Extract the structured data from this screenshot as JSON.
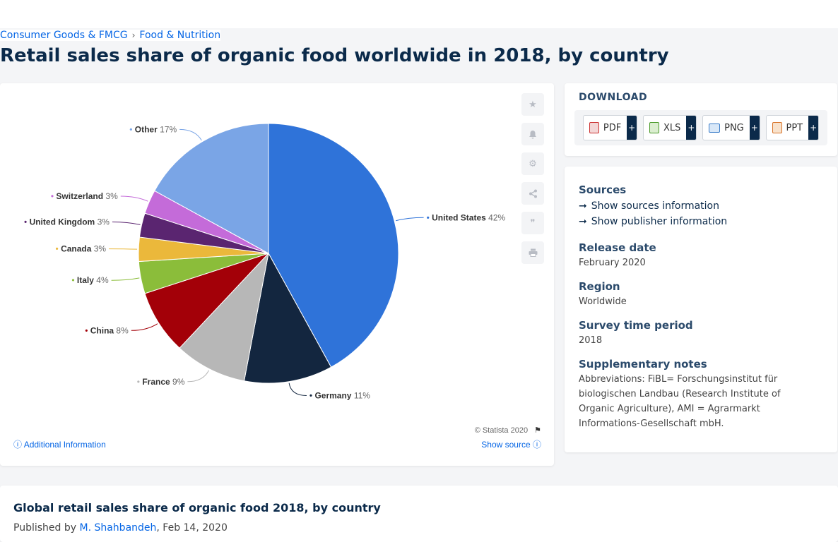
{
  "breadcrumb": {
    "items": [
      "Consumer Goods & FMCG",
      "Food & Nutrition"
    ]
  },
  "page_title": "Retail sales share of organic food worldwide in 2018, by country",
  "chart_data": {
    "type": "pie",
    "title": "",
    "slices": [
      {
        "label": "United States",
        "value": 42,
        "value_label": "42%",
        "color": "#2f73d9"
      },
      {
        "label": "Germany",
        "value": 11,
        "value_label": "11%",
        "color": "#13263f"
      },
      {
        "label": "France",
        "value": 9,
        "value_label": "9%",
        "color": "#b7b7b7"
      },
      {
        "label": "China",
        "value": 8,
        "value_label": "8%",
        "color": "#a30008"
      },
      {
        "label": "Italy",
        "value": 4,
        "value_label": "4%",
        "color": "#8bbd3a"
      },
      {
        "label": "Canada",
        "value": 3,
        "value_label": "3%",
        "color": "#ebb83b"
      },
      {
        "label": "United Kingdom",
        "value": 3,
        "value_label": "3%",
        "color": "#5a2570"
      },
      {
        "label": "Switzerland",
        "value": 3,
        "value_label": "3%",
        "color": "#c46bd9"
      },
      {
        "label": "Other",
        "value": 17,
        "value_label": "17%",
        "color": "#7aa5e6"
      }
    ]
  },
  "tools": [
    "star-icon",
    "bell-icon",
    "gear-icon",
    "share-icon",
    "quote-icon",
    "print-icon"
  ],
  "copyright": "© Statista 2020",
  "additional_info": "Additional Information",
  "show_source": "Show source",
  "download": {
    "title": "DOWNLOAD",
    "buttons": [
      {
        "label": "PDF",
        "plus": "+"
      },
      {
        "label": "XLS",
        "plus": "+"
      },
      {
        "label": "PNG",
        "plus": "+"
      },
      {
        "label": "PPT",
        "plus": "+"
      }
    ]
  },
  "info": {
    "sources_title": "Sources",
    "show_sources": "Show sources information",
    "show_publisher": "Show publisher information",
    "release_title": "Release date",
    "release_value": "February 2020",
    "region_title": "Region",
    "region_value": "Worldwide",
    "survey_title": "Survey time period",
    "survey_value": "2018",
    "notes_title": "Supplementary notes",
    "notes_value": "Abbreviations: FiBL= Forschungsinstitut für biologischen Landbau (Research Institute of Organic Agriculture), AMI = Agrarmarkt Informations-Gesellschaft mbH."
  },
  "bottom": {
    "title": "Global retail sales share of organic food 2018, by country",
    "published_prefix": "Published by",
    "author": "M. Shahbandeh",
    "date": ", Feb 14, 2020"
  }
}
